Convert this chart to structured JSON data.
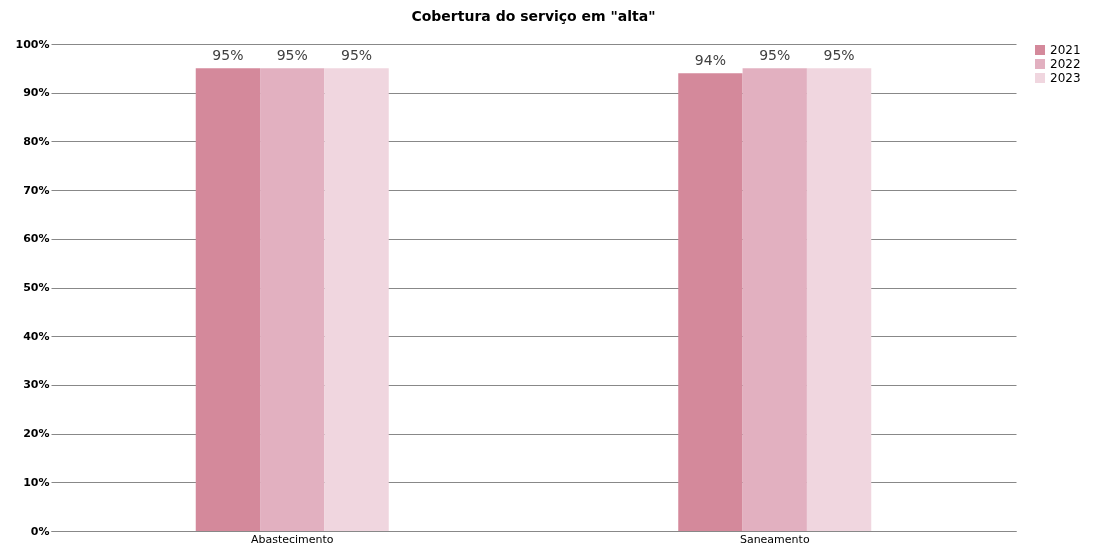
{
  "chart_data": {
    "type": "bar",
    "title": "Cobertura do serviço em \"alta\"",
    "categories": [
      "Abastecimento",
      "Saneamento"
    ],
    "series": [
      {
        "name": "2021",
        "color": "#d4899b",
        "values": [
          95,
          94
        ],
        "value_labels": [
          "95%",
          "94%"
        ]
      },
      {
        "name": "2022",
        "color": "#e2b0c0",
        "values": [
          95,
          95
        ],
        "value_labels": [
          "95%",
          "95%"
        ]
      },
      {
        "name": "2023",
        "color": "#f0d6df",
        "values": [
          95,
          95
        ],
        "value_labels": [
          "95%",
          "95%"
        ]
      }
    ],
    "ylim": [
      0,
      100
    ],
    "yticks": [
      {
        "value": 0,
        "label": "0%"
      },
      {
        "value": 10,
        "label": "10%"
      },
      {
        "value": 20,
        "label": "20%"
      },
      {
        "value": 30,
        "label": "30%"
      },
      {
        "value": 40,
        "label": "40%"
      },
      {
        "value": 50,
        "label": "50%"
      },
      {
        "value": 60,
        "label": "60%"
      },
      {
        "value": 70,
        "label": "70%"
      },
      {
        "value": 80,
        "label": "80%"
      },
      {
        "value": 90,
        "label": "90%"
      },
      {
        "value": 100,
        "label": "100%"
      }
    ],
    "grid": "y",
    "legend": "right"
  }
}
